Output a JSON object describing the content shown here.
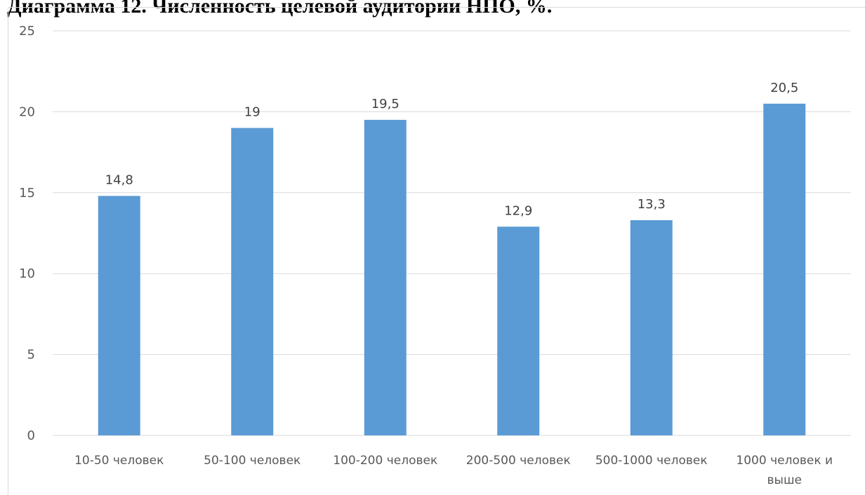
{
  "chart_data": {
    "type": "bar",
    "title": "Диаграмма 12. Численность целевой аудитории НПО, %.",
    "categories": [
      [
        "10-50 человек"
      ],
      [
        "50-100 человек"
      ],
      [
        "100-200 человек"
      ],
      [
        "200-500 человек"
      ],
      [
        "500-1000 человек"
      ],
      [
        "1000 человек и",
        "выше"
      ]
    ],
    "values": [
      14.8,
      19,
      19.5,
      12.9,
      13.3,
      20.5
    ],
    "data_labels": [
      "14,8",
      "19",
      "19,5",
      "12,9",
      "13,3",
      "20,5"
    ],
    "yticks": [
      0,
      5,
      10,
      15,
      20,
      25
    ],
    "ylim": [
      0,
      25
    ],
    "xlabel": "",
    "ylabel": "",
    "grid": true,
    "legend": "none",
    "colors": {
      "bar": "#5b9bd5",
      "grid": "#d9d9d9"
    }
  }
}
